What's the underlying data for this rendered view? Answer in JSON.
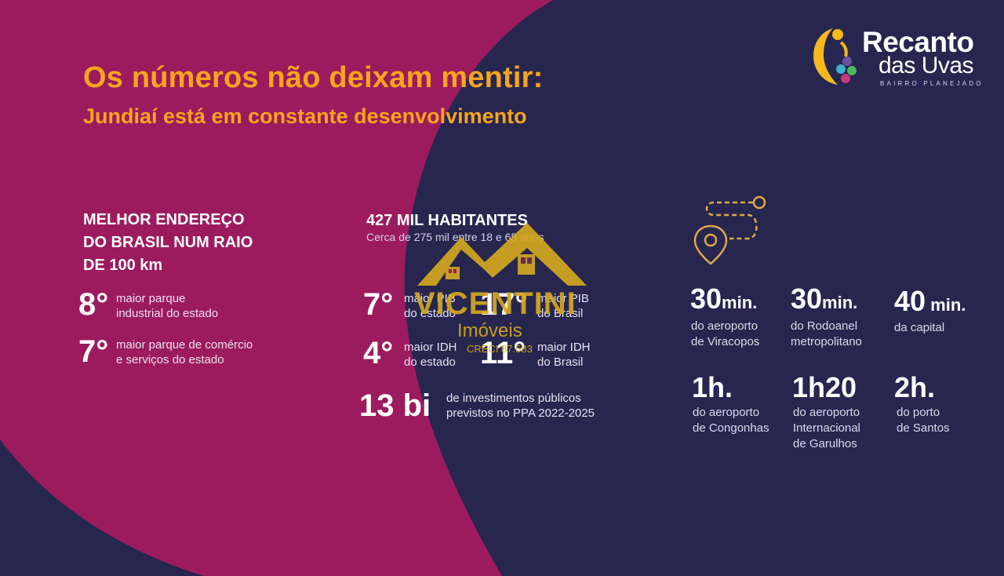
{
  "header": {
    "title": "Os números não deixam mentir:",
    "subtitle": "Jundiaí está em constante desenvolvimento"
  },
  "logo": {
    "line1": "Recanto",
    "line2": "das Uvas",
    "tagline": "BAIRRO PLANEJADO",
    "icon": "family-grapes-icon"
  },
  "left_block": {
    "heading_lines": [
      "MELHOR ENDEREÇO",
      "DO BRASIL NUM RAIO",
      "DE 100 km"
    ],
    "stats": [
      {
        "rank": "8°",
        "line1": "maior parque",
        "line2": "industrial do estado"
      },
      {
        "rank": "7°",
        "line1": "maior parque de comércio",
        "line2": "e serviços do estado"
      }
    ]
  },
  "middle_block": {
    "title": "427 MIL HABITANTES",
    "subtitle": "Cerca de 275 mil entre 18 e 65 anos",
    "ranks": [
      {
        "rank": "7°",
        "line1": "maior PIB",
        "line2": "do estado"
      },
      {
        "rank": "17°",
        "line1": "maior PIB",
        "line2": "do Brasil"
      },
      {
        "rank": "4°",
        "line1": "maior IDH",
        "line2": "do estado"
      },
      {
        "rank": "11°",
        "line1": "maior IDH",
        "line2": "do Brasil"
      }
    ],
    "investment": {
      "value": "13 bi",
      "line1": "de investimentos públicos",
      "line2": "previstos no PPA 2022-2025"
    }
  },
  "right_block": {
    "icon": "route-pin-icon",
    "times": [
      {
        "value": "30",
        "unit": "min.",
        "lines": [
          "do aeroporto",
          "de Viracopos"
        ]
      },
      {
        "value": "30",
        "unit": "min.",
        "lines": [
          "do Rodoanel",
          "metropolitano"
        ]
      },
      {
        "value": "40",
        "unit": " min.",
        "lines": [
          "da capital"
        ]
      },
      {
        "value": "1h.",
        "unit": "",
        "lines": [
          "do aeroporto",
          "de Congonhas"
        ]
      },
      {
        "value": "1h20",
        "unit": "",
        "lines": [
          "do aeroporto",
          "Internacional",
          "de Garulhos"
        ]
      },
      {
        "value": "2h.",
        "unit": "",
        "lines": [
          "do porto",
          "de Santos"
        ]
      }
    ]
  },
  "watermark": {
    "name": "VICENTINI",
    "sub": "Imóveis",
    "creci": "CRECI 87.583",
    "icon": "house-roof-icon"
  },
  "colors": {
    "magenta": "#9c1b5f",
    "navy": "#27264f",
    "orange": "#f6a51c",
    "gold": "#d4a820"
  }
}
